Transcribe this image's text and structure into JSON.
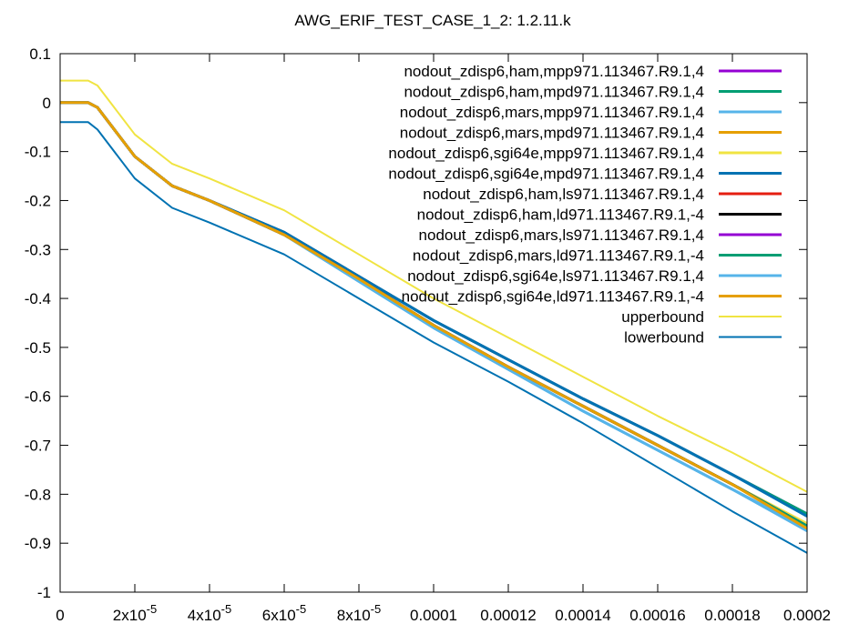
{
  "chart_data": {
    "type": "line",
    "title": "AWG_ERIF_TEST_CASE_1_2: 1.2.11.k",
    "xlabel": "",
    "ylabel": "",
    "xlim": [
      0,
      0.0002
    ],
    "ylim": [
      -1,
      0.1
    ],
    "grid": false,
    "legend_position": "top-right",
    "x_ticks": [
      {
        "value": 0,
        "label": "0"
      },
      {
        "value": 2e-05,
        "label": "2x10-5",
        "mant": "2x10",
        "exp": "-5"
      },
      {
        "value": 4e-05,
        "label": "4x10-5",
        "mant": "4x10",
        "exp": "-5"
      },
      {
        "value": 6e-05,
        "label": "6x10-5",
        "mant": "6x10",
        "exp": "-5"
      },
      {
        "value": 8e-05,
        "label": "8x10-5",
        "mant": "8x10",
        "exp": "-5"
      },
      {
        "value": 0.0001,
        "label": "0.0001"
      },
      {
        "value": 0.00012,
        "label": "0.00012"
      },
      {
        "value": 0.00014,
        "label": "0.00014"
      },
      {
        "value": 0.00016,
        "label": "0.00016"
      },
      {
        "value": 0.00018,
        "label": "0.00018"
      },
      {
        "value": 0.0002,
        "label": "0.0002"
      }
    ],
    "y_ticks": [
      {
        "value": 0.1,
        "label": "0.1"
      },
      {
        "value": 0,
        "label": "0"
      },
      {
        "value": -0.1,
        "label": "-0.1"
      },
      {
        "value": -0.2,
        "label": "-0.2"
      },
      {
        "value": -0.3,
        "label": "-0.3"
      },
      {
        "value": -0.4,
        "label": "-0.4"
      },
      {
        "value": -0.5,
        "label": "-0.5"
      },
      {
        "value": -0.6,
        "label": "-0.6"
      },
      {
        "value": -0.7,
        "label": "-0.7"
      },
      {
        "value": -0.8,
        "label": "-0.8"
      },
      {
        "value": -0.9,
        "label": "-0.9"
      },
      {
        "value": -1,
        "label": "-1"
      }
    ],
    "series": [
      {
        "name": "nodout_zdisp6,ham,mpp971.113467.R9.1,4",
        "color": "#9400d3",
        "width": 3,
        "x": [
          0,
          7.5e-06,
          1e-05,
          2e-05,
          3e-05,
          4e-05,
          6e-05,
          8e-05,
          0.0001,
          0.00012,
          0.00014,
          0.00016,
          0.00018,
          0.0002
        ],
        "y": [
          0,
          0,
          -0.01,
          -0.11,
          -0.17,
          -0.2,
          -0.265,
          -0.355,
          -0.445,
          -0.525,
          -0.605,
          -0.68,
          -0.76,
          -0.84
        ]
      },
      {
        "name": "nodout_zdisp6,ham,mpd971.113467.R9.1,4",
        "color": "#009e73",
        "width": 3,
        "x": [
          0,
          7.5e-06,
          1e-05,
          2e-05,
          3e-05,
          4e-05,
          6e-05,
          8e-05,
          0.0001,
          0.00012,
          0.00014,
          0.00016,
          0.00018,
          0.0002
        ],
        "y": [
          0,
          0,
          -0.01,
          -0.11,
          -0.17,
          -0.2,
          -0.265,
          -0.355,
          -0.445,
          -0.525,
          -0.605,
          -0.68,
          -0.76,
          -0.84
        ]
      },
      {
        "name": "nodout_zdisp6,mars,mpp971.113467.R9.1,4",
        "color": "#56b4e9",
        "width": 3,
        "x": [
          0,
          7.5e-06,
          1e-05,
          2e-05,
          3e-05,
          4e-05,
          6e-05,
          8e-05,
          0.0001,
          0.00012,
          0.00014,
          0.00016,
          0.00018,
          0.0002
        ],
        "y": [
          0,
          0,
          -0.01,
          -0.11,
          -0.17,
          -0.2,
          -0.27,
          -0.365,
          -0.46,
          -0.545,
          -0.63,
          -0.71,
          -0.79,
          -0.875
        ]
      },
      {
        "name": "nodout_zdisp6,mars,mpd971.113467.R9.1,4",
        "color": "#e69f00",
        "width": 3,
        "x": [
          0,
          7.5e-06,
          1e-05,
          2e-05,
          3e-05,
          4e-05,
          6e-05,
          8e-05,
          0.0001,
          0.00012,
          0.00014,
          0.00016,
          0.00018,
          0.0002
        ],
        "y": [
          0,
          0,
          -0.01,
          -0.11,
          -0.17,
          -0.2,
          -0.27,
          -0.36,
          -0.455,
          -0.54,
          -0.62,
          -0.7,
          -0.78,
          -0.865
        ]
      },
      {
        "name": "nodout_zdisp6,sgi64e,mpp971.113467.R9.1,4",
        "color": "#f0e442",
        "width": 3,
        "x": [
          0,
          7.5e-06,
          1e-05,
          2e-05,
          3e-05,
          4e-05,
          6e-05,
          8e-05,
          0.0001,
          0.00012,
          0.00014,
          0.00016,
          0.00018,
          0.0002
        ],
        "y": [
          0,
          0,
          -0.01,
          -0.11,
          -0.17,
          -0.2,
          -0.27,
          -0.36,
          -0.455,
          -0.54,
          -0.62,
          -0.7,
          -0.78,
          -0.86
        ]
      },
      {
        "name": "nodout_zdisp6,sgi64e,mpd971.113467.R9.1,4",
        "color": "#0072b2",
        "width": 3,
        "x": [
          0,
          7.5e-06,
          1e-05,
          2e-05,
          3e-05,
          4e-05,
          6e-05,
          8e-05,
          0.0001,
          0.00012,
          0.00014,
          0.00016,
          0.00018,
          0.0002
        ],
        "y": [
          0,
          0,
          -0.01,
          -0.11,
          -0.17,
          -0.2,
          -0.265,
          -0.355,
          -0.445,
          -0.525,
          -0.605,
          -0.68,
          -0.76,
          -0.845
        ]
      },
      {
        "name": "nodout_zdisp6,ham,ls971.113467.R9.1,4",
        "color": "#e51e10",
        "width": 3,
        "x": [
          0,
          7.5e-06,
          1e-05,
          2e-05,
          3e-05,
          4e-05,
          6e-05,
          8e-05,
          0.0001,
          0.00012,
          0.00014,
          0.00016,
          0.00018,
          0.0002
        ],
        "y": [
          0,
          0,
          -0.01,
          -0.11,
          -0.17,
          -0.2,
          -0.27,
          -0.36,
          -0.455,
          -0.54,
          -0.62,
          -0.7,
          -0.78,
          -0.865
        ]
      },
      {
        "name": "nodout_zdisp6,ham,ld971.113467.R9.1,-4",
        "color": "#000000",
        "width": 3,
        "x": [
          0,
          7.5e-06,
          1e-05,
          2e-05,
          3e-05,
          4e-05,
          6e-05,
          8e-05,
          0.0001,
          0.00012,
          0.00014,
          0.00016,
          0.00018,
          0.0002
        ],
        "y": [
          0,
          0,
          -0.01,
          -0.11,
          -0.17,
          -0.2,
          -0.27,
          -0.36,
          -0.455,
          -0.54,
          -0.62,
          -0.7,
          -0.78,
          -0.865
        ]
      },
      {
        "name": "nodout_zdisp6,mars,ls971.113467.R9.1,4",
        "color": "#9400d3",
        "width": 3,
        "x": [
          0,
          7.5e-06,
          1e-05,
          2e-05,
          3e-05,
          4e-05,
          6e-05,
          8e-05,
          0.0001,
          0.00012,
          0.00014,
          0.00016,
          0.00018,
          0.0002
        ],
        "y": [
          0,
          0,
          -0.01,
          -0.11,
          -0.17,
          -0.2,
          -0.27,
          -0.36,
          -0.455,
          -0.54,
          -0.62,
          -0.7,
          -0.78,
          -0.865
        ]
      },
      {
        "name": "nodout_zdisp6,mars,ld971.113467.R9.1,-4",
        "color": "#009e73",
        "width": 3,
        "x": [
          0,
          7.5e-06,
          1e-05,
          2e-05,
          3e-05,
          4e-05,
          6e-05,
          8e-05,
          0.0001,
          0.00012,
          0.00014,
          0.00016,
          0.00018,
          0.0002
        ],
        "y": [
          0,
          0,
          -0.01,
          -0.11,
          -0.17,
          -0.2,
          -0.27,
          -0.36,
          -0.455,
          -0.54,
          -0.62,
          -0.7,
          -0.78,
          -0.865
        ]
      },
      {
        "name": "nodout_zdisp6,sgi64e,ls971.113467.R9.1,4",
        "color": "#56b4e9",
        "width": 3,
        "x": [
          0,
          7.5e-06,
          1e-05,
          2e-05,
          3e-05,
          4e-05,
          6e-05,
          8e-05,
          0.0001,
          0.00012,
          0.00014,
          0.00016,
          0.00018,
          0.0002
        ],
        "y": [
          0,
          0,
          -0.01,
          -0.11,
          -0.17,
          -0.2,
          -0.27,
          -0.365,
          -0.46,
          -0.545,
          -0.63,
          -0.71,
          -0.79,
          -0.87
        ]
      },
      {
        "name": "nodout_zdisp6,sgi64e,ld971.113467.R9.1,-4",
        "color": "#e69f00",
        "width": 3,
        "x": [
          0,
          7.5e-06,
          1e-05,
          2e-05,
          3e-05,
          4e-05,
          6e-05,
          8e-05,
          0.0001,
          0.00012,
          0.00014,
          0.00016,
          0.00018,
          0.0002
        ],
        "y": [
          0,
          0,
          -0.01,
          -0.11,
          -0.17,
          -0.2,
          -0.27,
          -0.36,
          -0.455,
          -0.54,
          -0.62,
          -0.7,
          -0.78,
          -0.87
        ]
      },
      {
        "name": "upperbound",
        "color": "#f0e442",
        "width": 2,
        "x": [
          0,
          7.5e-06,
          1e-05,
          2e-05,
          3e-05,
          4e-05,
          6e-05,
          8e-05,
          0.0001,
          0.00012,
          0.00014,
          0.00016,
          0.00018,
          0.0002
        ],
        "y": [
          0.045,
          0.045,
          0.035,
          -0.065,
          -0.125,
          -0.155,
          -0.22,
          -0.31,
          -0.4,
          -0.48,
          -0.56,
          -0.64,
          -0.715,
          -0.795
        ]
      },
      {
        "name": "lowerbound",
        "color": "#0072b2",
        "width": 2,
        "x": [
          0,
          7.5e-06,
          1e-05,
          2e-05,
          3e-05,
          4e-05,
          6e-05,
          8e-05,
          0.0001,
          0.00012,
          0.00014,
          0.00016,
          0.00018,
          0.0002
        ],
        "y": [
          -0.04,
          -0.04,
          -0.055,
          -0.155,
          -0.215,
          -0.245,
          -0.31,
          -0.4,
          -0.49,
          -0.57,
          -0.655,
          -0.745,
          -0.835,
          -0.92
        ]
      }
    ]
  }
}
